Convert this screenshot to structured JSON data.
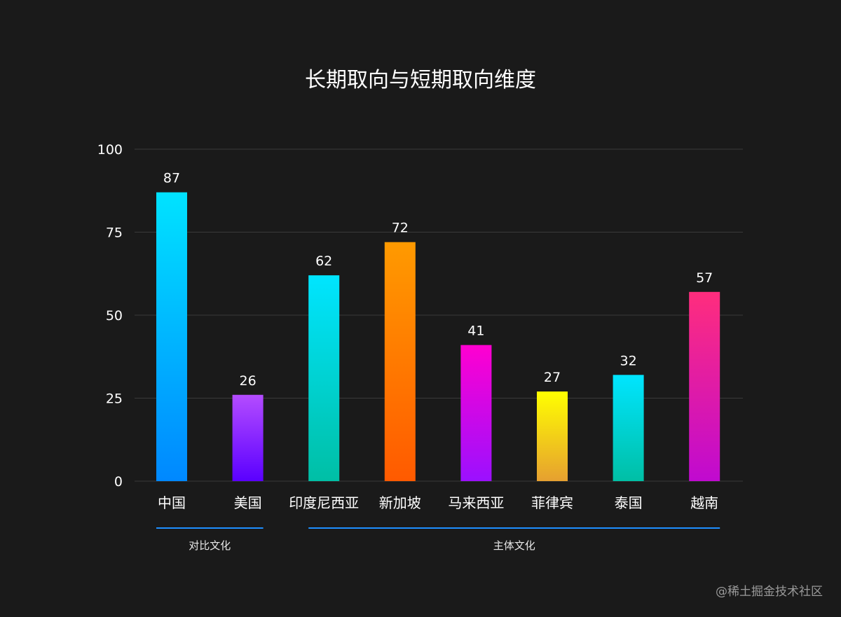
{
  "chart_data": {
    "type": "bar",
    "title": "长期取向与短期取向维度",
    "categories": [
      "中国",
      "美国",
      "印度尼西亚",
      "新加坡",
      "马来西亚",
      "菲律宾",
      "泰国",
      "越南"
    ],
    "values": [
      87,
      26,
      62,
      72,
      41,
      27,
      32,
      57
    ],
    "ylim": [
      0,
      100
    ],
    "yticks": [
      0,
      25,
      50,
      75,
      100
    ],
    "grid": true,
    "data_labels": true,
    "bar_gradients": [
      [
        "#00e3ff",
        "#0088ff"
      ],
      [
        "#b44cff",
        "#5a00ff"
      ],
      [
        "#00e5ff",
        "#00bfa5"
      ],
      [
        "#ff9a00",
        "#ff5a00"
      ],
      [
        "#ff00d0",
        "#9b10ff"
      ],
      [
        "#ffff00",
        "#e6a030"
      ],
      [
        "#00e5ff",
        "#00bfa5"
      ],
      [
        "#ff2d7d",
        "#c00ad0"
      ]
    ],
    "groups": [
      {
        "label": "对比文化",
        "start": 0,
        "end": 1
      },
      {
        "label": "主体文化",
        "start": 2,
        "end": 7
      }
    ],
    "group_line_color": "#1e8fff",
    "grid_color": "#3a3a3a"
  },
  "watermark": "@稀土掘金技术社区"
}
